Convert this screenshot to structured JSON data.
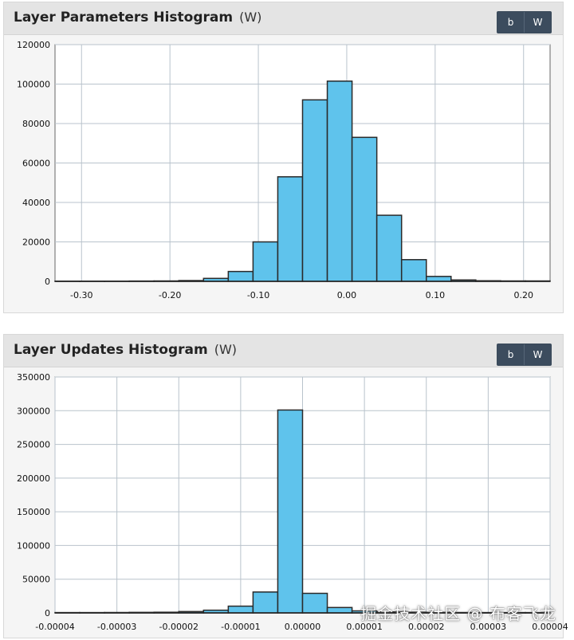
{
  "panels": [
    {
      "title": "Layer Parameters Histogram",
      "subtitle": "(W)",
      "buttons": [
        "b",
        "W"
      ]
    },
    {
      "title": "Layer Updates Histogram",
      "subtitle": "(W)",
      "buttons": [
        "b",
        "W"
      ]
    }
  ],
  "colors": {
    "bar_fill": "#5fc3ec",
    "bar_stroke": "#2a2a2a",
    "grid": "#b9c3cc"
  },
  "watermark": "掘金技术社区 @ 布客飞龙",
  "chart_data": [
    {
      "type": "bar",
      "title": "Layer Parameters Histogram",
      "xlim": [
        -0.33,
        0.23
      ],
      "ylim": [
        0,
        120000
      ],
      "xticks": [
        -0.3,
        -0.2,
        -0.1,
        0.0,
        0.1,
        0.2
      ],
      "xtick_labels": [
        "-0.30",
        "-0.20",
        "-0.10",
        "0.00",
        "0.10",
        "0.20"
      ],
      "yticks": [
        0,
        20000,
        40000,
        60000,
        80000,
        100000,
        120000
      ],
      "ytick_labels": [
        "0",
        "20000",
        "40000",
        "60000",
        "80000",
        "100000",
        "120000"
      ],
      "bin_width": 0.028,
      "bin_starts": [
        -0.33,
        -0.302,
        -0.274,
        -0.246,
        -0.218,
        -0.19,
        -0.162,
        -0.134,
        -0.106,
        -0.078,
        -0.05,
        -0.022,
        0.006,
        0.034,
        0.062,
        0.09,
        0.118,
        0.146,
        0.174,
        0.202
      ],
      "values": [
        100,
        100,
        100,
        150,
        200,
        400,
        1500,
        5000,
        20000,
        53000,
        92000,
        101500,
        73000,
        33500,
        11000,
        2500,
        700,
        300,
        200,
        200
      ],
      "grid": true
    },
    {
      "type": "bar",
      "title": "Layer Updates Histogram",
      "xlim": [
        -4e-05,
        4e-05
      ],
      "ylim": [
        0,
        350000
      ],
      "xticks": [
        -4e-05,
        -3e-05,
        -2e-05,
        -1e-05,
        0.0,
        1e-05,
        2e-05,
        3e-05,
        4e-05
      ],
      "xtick_labels": [
        "-0.00004",
        "-0.00003",
        "-0.00002",
        "-0.00001",
        "0.00000",
        "0.00001",
        "0.00002",
        "0.00003",
        "0.00004"
      ],
      "yticks": [
        0,
        50000,
        100000,
        150000,
        200000,
        250000,
        300000,
        350000
      ],
      "ytick_labels": [
        "0",
        "50000",
        "100000",
        "150000",
        "200000",
        "250000",
        "300000",
        "350000"
      ],
      "bin_width": 4e-06,
      "bin_starts": [
        -4e-05,
        -3.6e-05,
        -3.2e-05,
        -2.8e-05,
        -2.4e-05,
        -2e-05,
        -1.6e-05,
        -1.2e-05,
        -8e-06,
        -4e-06,
        0.0,
        4e-06,
        8e-06,
        1.2e-05,
        1.6e-05,
        2e-05,
        2.4e-05,
        2.8e-05,
        3.2e-05,
        3.6e-05
      ],
      "values": [
        500,
        500,
        600,
        800,
        1000,
        2000,
        4000,
        10000,
        31000,
        301000,
        29000,
        8000,
        3000,
        1500,
        1000,
        800,
        600,
        500,
        500,
        500
      ],
      "grid": true
    }
  ]
}
